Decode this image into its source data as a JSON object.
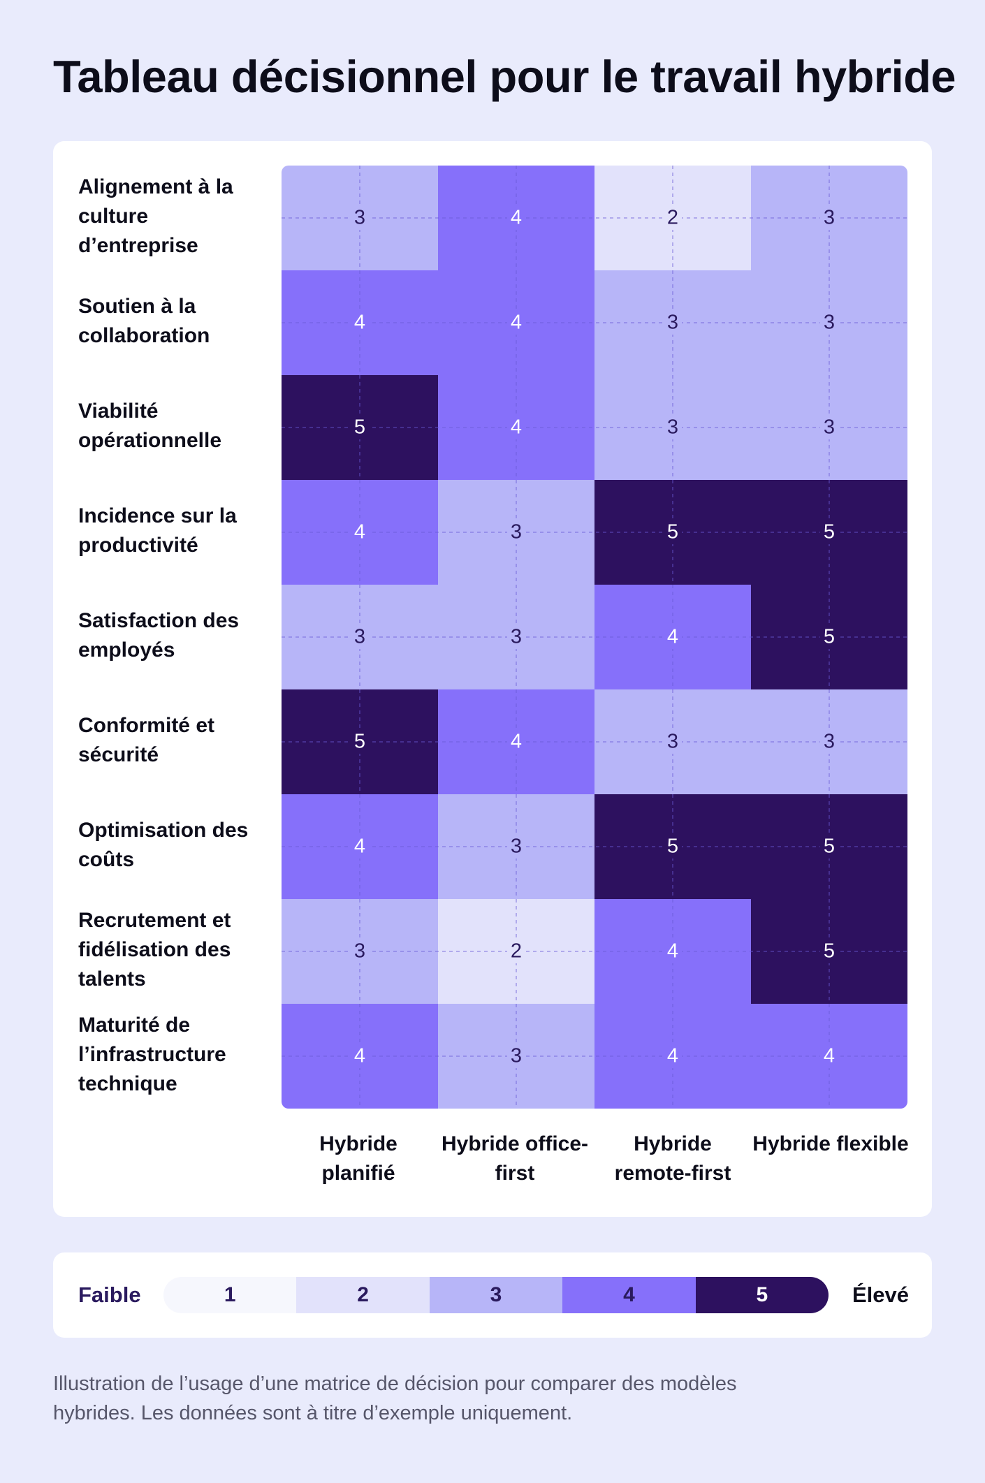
{
  "title": "Tableau décisionnel pour le travail hybride",
  "colors": {
    "level_1": "#f6f7fd",
    "level_2": "#e2e2fb",
    "level_3": "#b7b5f8",
    "level_4": "#8670fa",
    "level_5": "#2d115f",
    "text_light": "#ffffff",
    "text_dark": "#2a1a5e",
    "grid_line": "#6a5bd6"
  },
  "chart_data": {
    "type": "heatmap",
    "title": "Tableau décisionnel pour le travail hybride",
    "rows": [
      "Alignement à la culture d’entreprise",
      "Soutien à la collaboration",
      "Viabilité opérationnelle",
      "Incidence sur la productivité",
      "Satisfaction des employés",
      "Conformité et sécurité",
      "Optimisation des coûts",
      "Recrutement et fidélisation des talents",
      "Maturité de l’infrastructure technique"
    ],
    "columns": [
      "Hybride planifié",
      "Hybride office-first",
      "Hybride remote-first",
      "Hybride flexible"
    ],
    "values": [
      [
        3,
        4,
        2,
        3
      ],
      [
        4,
        4,
        3,
        3
      ],
      [
        5,
        4,
        3,
        3
      ],
      [
        4,
        3,
        5,
        5
      ],
      [
        3,
        3,
        4,
        5
      ],
      [
        5,
        4,
        3,
        3
      ],
      [
        4,
        3,
        5,
        5
      ],
      [
        3,
        2,
        4,
        5
      ],
      [
        4,
        3,
        4,
        4
      ]
    ],
    "scale": {
      "min": 1,
      "max": 5,
      "low_label": "Faible",
      "high_label": "Élevé"
    },
    "legend": {
      "low_label": "Faible",
      "high_label": "Élevé",
      "levels": [
        "1",
        "2",
        "3",
        "4",
        "5"
      ]
    }
  },
  "caption": "Illustration de l’usage d’une matrice de décision pour comparer des modèles hybrides. Les données sont à titre d’exemple uniquement."
}
